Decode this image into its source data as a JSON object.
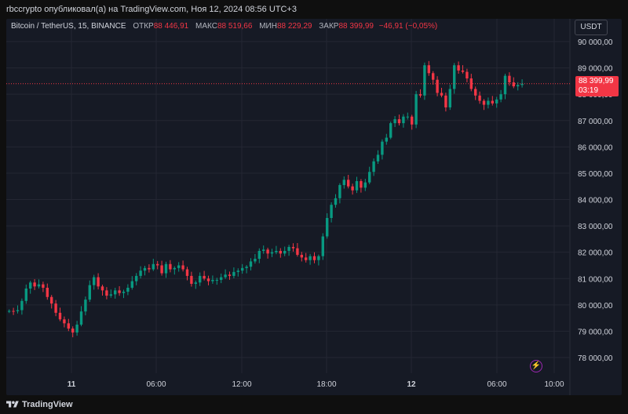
{
  "header": {
    "publish_line": "rbccrypto опубликовал(а) на TradingView.com, Ноя 12, 2024 08:56 UTC+3"
  },
  "legend": {
    "symbol": "Bitcoin / TetherUS, 15, BINANCE",
    "open_label": "ОТКР",
    "open_value": "88 446,91",
    "high_label": "МАКС",
    "high_value": "88 519,66",
    "low_label": "МИН",
    "low_value": "88 229,29",
    "close_label": "ЗАКР",
    "close_value": "88 399,99",
    "change": "−46,91 (−0,05%)"
  },
  "currency_button": "USDT",
  "price_tag": {
    "price": "88 399,99",
    "countdown": "03:19"
  },
  "footer": {
    "brand": "TradingView"
  },
  "colors": {
    "up": "#089981",
    "down": "#f23645",
    "background": "#161a25",
    "grid": "#242733",
    "axis_text": "#d1d4dc"
  },
  "chart_data": {
    "type": "candlestick",
    "y_axis_ticks": [
      "78 000,00",
      "79 000,00",
      "80 000,00",
      "81 000,00",
      "82 000,00",
      "83 000,00",
      "84 000,00",
      "85 000,00",
      "86 000,00",
      "87 000,00",
      "88 000,00",
      "89 000,00",
      "90 000,00"
    ],
    "x_axis_ticks": [
      "11",
      "06:00",
      "12:00",
      "18:00",
      "12",
      "06:00",
      "10:00"
    ],
    "ylim": [
      77600,
      90500
    ],
    "last_price": 88399.99,
    "close_series": [
      79770,
      79760,
      79800,
      80150,
      80620,
      80850,
      80700,
      80780,
      80650,
      80300,
      80050,
      79700,
      79450,
      79300,
      79100,
      78950,
      79250,
      79750,
      80200,
      80750,
      81050,
      80700,
      80550,
      80350,
      80400,
      80550,
      80450,
      80500,
      80650,
      80900,
      81100,
      81300,
      81400,
      81350,
      81550,
      81500,
      81200,
      81550,
      81350,
      81400,
      81500,
      81350,
      81100,
      80800,
      80850,
      81100,
      81000,
      80900,
      80950,
      80950,
      81050,
      81150,
      81100,
      81250,
      81300,
      81400,
      81450,
      81650,
      81750,
      82050,
      82100,
      81950,
      82000,
      82050,
      81950,
      82050,
      82200,
      82150,
      81900,
      81800,
      81700,
      81850,
      81700,
      81850,
      82600,
      83300,
      83800,
      84050,
      84550,
      84750,
      84500,
      84350,
      84700,
      84450,
      84650,
      85050,
      85450,
      85700,
      86200,
      86350,
      86900,
      87050,
      86900,
      87150,
      87150,
      86850,
      88000,
      87950,
      89100,
      88800,
      88550,
      88050,
      87950,
      87500,
      88200,
      89100,
      88900,
      88850,
      88600,
      88200,
      87950,
      87750,
      87600,
      87750,
      87650,
      87800,
      88000,
      88700,
      88450,
      88300,
      88350,
      88400
    ]
  }
}
